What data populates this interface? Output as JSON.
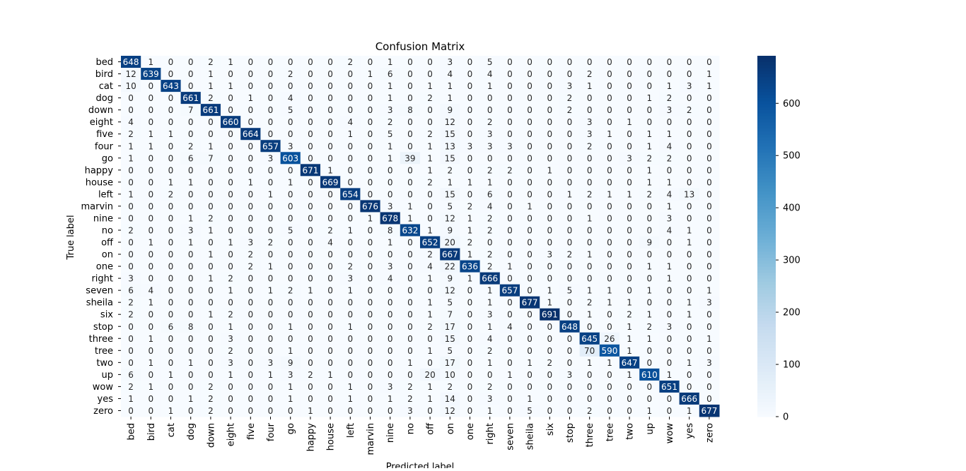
{
  "chart_data": {
    "type": "heatmap",
    "title": "Confusion Matrix",
    "xlabel": "Predicted label",
    "ylabel": "True label",
    "labels": [
      "bed",
      "bird",
      "cat",
      "dog",
      "down",
      "eight",
      "five",
      "four",
      "go",
      "happy",
      "house",
      "left",
      "marvin",
      "nine",
      "no",
      "off",
      "on",
      "one",
      "right",
      "seven",
      "sheila",
      "six",
      "stop",
      "three",
      "tree",
      "two",
      "up",
      "wow",
      "yes",
      "zero"
    ],
    "values": [
      [
        648,
        1,
        0,
        0,
        2,
        1,
        0,
        0,
        0,
        0,
        0,
        2,
        0,
        1,
        0,
        0,
        3,
        0,
        5,
        0,
        0,
        0,
        0,
        0,
        0,
        0,
        0,
        0,
        0,
        0
      ],
      [
        12,
        639,
        0,
        0,
        1,
        0,
        0,
        0,
        2,
        0,
        0,
        0,
        1,
        6,
        0,
        0,
        4,
        0,
        4,
        0,
        0,
        0,
        0,
        2,
        0,
        0,
        0,
        0,
        0,
        1
      ],
      [
        10,
        0,
        643,
        0,
        1,
        1,
        0,
        0,
        0,
        0,
        0,
        0,
        0,
        1,
        0,
        1,
        1,
        0,
        1,
        0,
        0,
        0,
        3,
        1,
        0,
        0,
        0,
        1,
        3,
        1
      ],
      [
        0,
        0,
        0,
        661,
        2,
        0,
        1,
        0,
        4,
        0,
        0,
        0,
        0,
        1,
        0,
        2,
        1,
        0,
        0,
        0,
        0,
        0,
        2,
        0,
        0,
        0,
        1,
        2,
        0,
        0
      ],
      [
        0,
        0,
        0,
        7,
        661,
        0,
        0,
        0,
        5,
        0,
        0,
        0,
        0,
        3,
        8,
        0,
        9,
        0,
        0,
        0,
        0,
        0,
        2,
        0,
        0,
        0,
        0,
        3,
        2,
        0
      ],
      [
        4,
        0,
        0,
        0,
        0,
        660,
        0,
        0,
        0,
        0,
        0,
        4,
        0,
        2,
        0,
        0,
        12,
        0,
        2,
        0,
        0,
        0,
        0,
        3,
        0,
        1,
        0,
        0,
        0,
        0
      ],
      [
        2,
        1,
        1,
        0,
        0,
        0,
        664,
        0,
        0,
        0,
        0,
        1,
        0,
        5,
        0,
        2,
        15,
        0,
        3,
        0,
        0,
        0,
        0,
        3,
        1,
        0,
        1,
        1,
        0,
        0
      ],
      [
        1,
        1,
        0,
        2,
        1,
        0,
        0,
        657,
        3,
        0,
        0,
        0,
        0,
        1,
        0,
        1,
        13,
        3,
        3,
        3,
        0,
        0,
        0,
        2,
        0,
        0,
        1,
        4,
        0,
        0
      ],
      [
        1,
        0,
        0,
        6,
        7,
        0,
        0,
        3,
        603,
        0,
        0,
        0,
        0,
        1,
        39,
        1,
        15,
        0,
        0,
        0,
        0,
        0,
        0,
        0,
        0,
        3,
        2,
        2,
        0,
        0
      ],
      [
        0,
        0,
        0,
        0,
        0,
        0,
        0,
        0,
        0,
        671,
        1,
        0,
        0,
        0,
        0,
        1,
        2,
        0,
        2,
        2,
        0,
        1,
        0,
        0,
        0,
        0,
        1,
        0,
        0,
        0
      ],
      [
        0,
        0,
        1,
        1,
        0,
        0,
        1,
        0,
        1,
        0,
        669,
        0,
        0,
        0,
        0,
        2,
        1,
        1,
        1,
        0,
        0,
        0,
        0,
        0,
        0,
        0,
        1,
        1,
        0,
        0
      ],
      [
        1,
        0,
        2,
        0,
        0,
        0,
        0,
        1,
        0,
        0,
        0,
        654,
        0,
        0,
        0,
        0,
        15,
        0,
        6,
        0,
        0,
        0,
        1,
        2,
        1,
        1,
        2,
        4,
        13,
        0
      ],
      [
        0,
        0,
        0,
        0,
        0,
        0,
        0,
        0,
        0,
        0,
        0,
        0,
        676,
        3,
        1,
        0,
        5,
        2,
        4,
        0,
        1,
        0,
        0,
        0,
        0,
        0,
        0,
        1,
        0,
        0
      ],
      [
        0,
        0,
        0,
        1,
        2,
        0,
        0,
        0,
        0,
        0,
        0,
        0,
        1,
        678,
        1,
        0,
        12,
        1,
        2,
        0,
        0,
        0,
        0,
        1,
        0,
        0,
        0,
        3,
        0,
        0
      ],
      [
        2,
        0,
        0,
        3,
        1,
        0,
        0,
        0,
        5,
        0,
        2,
        1,
        0,
        8,
        632,
        1,
        9,
        1,
        2,
        0,
        0,
        0,
        0,
        0,
        0,
        0,
        0,
        4,
        1,
        0
      ],
      [
        0,
        1,
        0,
        1,
        0,
        1,
        3,
        2,
        0,
        0,
        4,
        0,
        0,
        1,
        0,
        652,
        20,
        2,
        0,
        0,
        0,
        0,
        0,
        0,
        0,
        0,
        9,
        0,
        1,
        0
      ],
      [
        0,
        0,
        0,
        0,
        1,
        0,
        2,
        0,
        0,
        0,
        0,
        0,
        0,
        0,
        0,
        2,
        667,
        1,
        2,
        0,
        0,
        3,
        2,
        1,
        0,
        0,
        0,
        0,
        0,
        0
      ],
      [
        0,
        0,
        0,
        0,
        0,
        0,
        2,
        1,
        0,
        0,
        0,
        2,
        0,
        3,
        0,
        4,
        22,
        636,
        2,
        1,
        0,
        0,
        0,
        0,
        0,
        0,
        1,
        1,
        0,
        0
      ],
      [
        3,
        0,
        0,
        0,
        1,
        2,
        0,
        0,
        0,
        0,
        0,
        3,
        0,
        4,
        0,
        1,
        9,
        1,
        666,
        0,
        0,
        0,
        0,
        0,
        0,
        0,
        0,
        1,
        0,
        0
      ],
      [
        6,
        4,
        0,
        0,
        0,
        1,
        0,
        1,
        2,
        1,
        0,
        1,
        0,
        0,
        0,
        0,
        12,
        0,
        1,
        657,
        0,
        1,
        5,
        1,
        1,
        0,
        1,
        0,
        0,
        1
      ],
      [
        2,
        1,
        0,
        0,
        0,
        0,
        0,
        0,
        0,
        0,
        0,
        0,
        0,
        0,
        0,
        1,
        5,
        0,
        1,
        0,
        677,
        1,
        0,
        2,
        1,
        1,
        0,
        0,
        1,
        3
      ],
      [
        2,
        0,
        0,
        0,
        1,
        2,
        0,
        0,
        0,
        0,
        0,
        0,
        0,
        0,
        0,
        1,
        7,
        0,
        3,
        0,
        0,
        691,
        0,
        1,
        0,
        2,
        1,
        0,
        1,
        0
      ],
      [
        0,
        0,
        6,
        8,
        0,
        1,
        0,
        0,
        1,
        0,
        0,
        1,
        0,
        0,
        0,
        2,
        17,
        0,
        1,
        4,
        0,
        0,
        648,
        0,
        0,
        1,
        2,
        3,
        0,
        0
      ],
      [
        0,
        1,
        0,
        0,
        0,
        3,
        0,
        0,
        0,
        0,
        0,
        0,
        0,
        0,
        0,
        0,
        15,
        0,
        4,
        0,
        0,
        0,
        0,
        645,
        26,
        1,
        1,
        0,
        0,
        1
      ],
      [
        0,
        0,
        0,
        0,
        0,
        2,
        0,
        0,
        1,
        0,
        0,
        0,
        0,
        0,
        0,
        1,
        5,
        0,
        2,
        0,
        0,
        0,
        0,
        70,
        590,
        1,
        0,
        0,
        0,
        0
      ],
      [
        0,
        1,
        0,
        1,
        0,
        3,
        0,
        3,
        9,
        0,
        0,
        0,
        0,
        0,
        1,
        0,
        17,
        0,
        1,
        0,
        1,
        2,
        0,
        1,
        1,
        647,
        0,
        0,
        1,
        3
      ],
      [
        6,
        0,
        1,
        0,
        0,
        1,
        0,
        1,
        3,
        2,
        1,
        0,
        0,
        0,
        0,
        20,
        10,
        0,
        0,
        1,
        0,
        0,
        3,
        0,
        0,
        1,
        610,
        1,
        0,
        0
      ],
      [
        2,
        1,
        0,
        0,
        2,
        0,
        0,
        0,
        1,
        0,
        0,
        1,
        0,
        3,
        2,
        1,
        2,
        0,
        2,
        0,
        0,
        0,
        0,
        0,
        0,
        0,
        0,
        651,
        0,
        0
      ],
      [
        1,
        0,
        0,
        1,
        2,
        0,
        0,
        0,
        1,
        0,
        0,
        1,
        0,
        1,
        2,
        1,
        14,
        0,
        3,
        0,
        1,
        0,
        0,
        0,
        0,
        0,
        0,
        0,
        666,
        0
      ],
      [
        0,
        0,
        1,
        0,
        2,
        0,
        0,
        0,
        0,
        1,
        0,
        0,
        0,
        0,
        3,
        0,
        12,
        0,
        1,
        0,
        5,
        0,
        0,
        2,
        0,
        0,
        1,
        0,
        1,
        677
      ]
    ],
    "colorbar": {
      "min": 0,
      "max": 691,
      "ticks": [
        0,
        100,
        200,
        300,
        400,
        500,
        600
      ],
      "colormap": "Blues"
    },
    "grid": false,
    "legend": "none"
  }
}
